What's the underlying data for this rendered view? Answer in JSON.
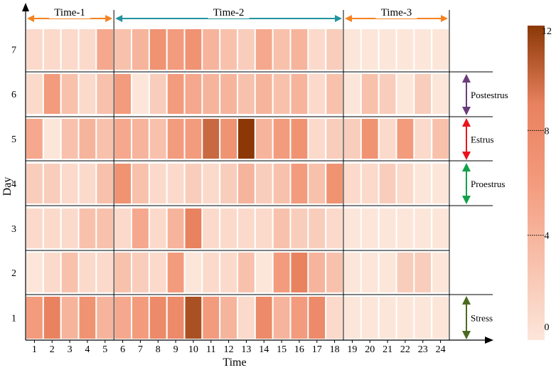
{
  "chart_data": {
    "type": "heatmap",
    "xlabel": "Time",
    "ylabel": "Day",
    "x": [
      1,
      2,
      3,
      4,
      5,
      6,
      7,
      8,
      9,
      10,
      11,
      12,
      13,
      14,
      15,
      16,
      17,
      18,
      19,
      20,
      21,
      22,
      23,
      24
    ],
    "y": [
      1,
      2,
      3,
      4,
      5,
      6,
      7
    ],
    "values": [
      [
        6,
        9,
        4,
        7,
        4,
        5,
        6,
        8,
        8,
        11,
        6,
        4,
        1,
        8,
        4,
        6,
        8,
        1,
        0,
        0,
        0,
        0,
        0,
        0
      ],
      [
        0,
        1,
        3,
        1,
        1,
        3,
        2,
        1,
        6,
        0,
        1,
        1,
        3,
        0,
        6,
        9,
        4,
        3,
        0,
        0,
        0,
        2,
        2,
        0
      ],
      [
        1,
        1,
        1,
        3,
        3,
        1,
        5,
        1,
        4,
        9,
        1,
        1,
        1,
        1,
        3,
        2,
        2,
        1,
        0,
        0,
        0,
        0,
        0,
        0
      ],
      [
        2,
        2,
        1,
        1,
        3,
        7,
        3,
        1,
        1,
        2,
        1,
        2,
        4,
        2,
        3,
        6,
        3,
        7,
        1,
        1,
        2,
        1,
        0,
        0
      ],
      [
        5,
        0,
        3,
        4,
        3,
        5,
        4,
        3,
        6,
        6,
        10,
        7,
        12,
        4,
        6,
        7,
        1,
        2,
        2,
        7,
        1,
        6,
        1,
        3
      ],
      [
        1,
        6,
        3,
        1,
        3,
        6,
        0,
        2,
        6,
        5,
        4,
        4,
        3,
        4,
        3,
        4,
        1,
        3,
        0,
        3,
        2,
        0,
        2,
        0
      ],
      [
        1,
        1,
        1,
        1,
        5,
        3,
        4,
        7,
        6,
        7,
        4,
        3,
        2,
        5,
        3,
        4,
        1,
        2,
        0,
        0,
        0,
        0,
        0,
        0
      ]
    ],
    "periods": [
      {
        "label": "Time-1",
        "from": 1,
        "to": 5
      },
      {
        "label": "Time-2",
        "from": 6,
        "to": 18
      },
      {
        "label": "Time-3",
        "from": 19,
        "to": 24
      }
    ],
    "phases": [
      {
        "label": "Postestrus",
        "day": 6
      },
      {
        "label": "Estrus",
        "day": 5
      },
      {
        "label": "Proestrus",
        "day": 4
      },
      {
        "label": "Stress",
        "day": 1
      }
    ],
    "colorbar": {
      "min": 0,
      "max": 12,
      "ticks": [
        0,
        4,
        8,
        12
      ],
      "low_color": "#FCE6DA",
      "mid_color": "#F09372",
      "high_color": "#8B3806"
    },
    "period_colors": {
      "Time-1": "#F58220",
      "Time-2": "#2394A0",
      "Time-3": "#F58220"
    },
    "phase_colors": {
      "Postestrus": "#6A3D7A",
      "Estrus": "#E8141B",
      "Proestrus": "#12A14A",
      "Stress": "#4B6B1F"
    }
  }
}
